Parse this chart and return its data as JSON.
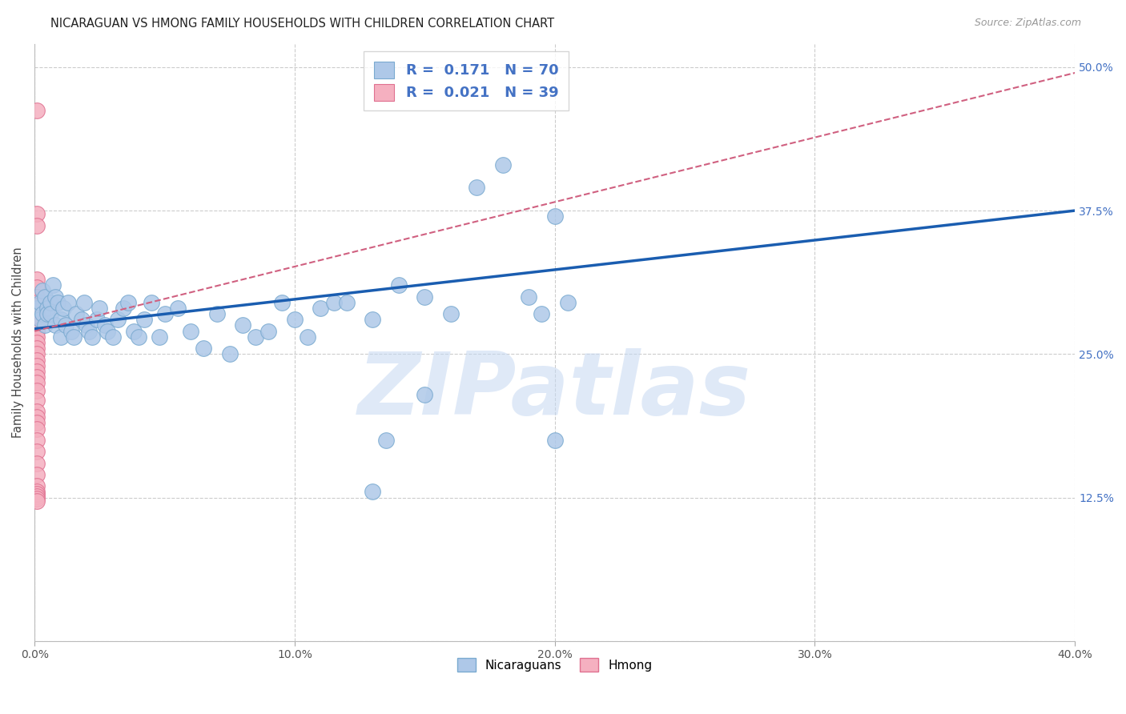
{
  "title": "NICARAGUAN VS HMONG FAMILY HOUSEHOLDS WITH CHILDREN CORRELATION CHART",
  "source": "Source: ZipAtlas.com",
  "ylabel": "Family Households with Children",
  "x_min": 0.0,
  "x_max": 0.4,
  "y_min": 0.0,
  "y_max": 0.52,
  "x_ticks": [
    0.0,
    0.1,
    0.2,
    0.3,
    0.4
  ],
  "x_tick_labels": [
    "0.0%",
    "10.0%",
    "20.0%",
    "30.0%",
    "40.0%"
  ],
  "y_ticks": [
    0.0,
    0.125,
    0.25,
    0.375,
    0.5
  ],
  "y_tick_labels_right": [
    "",
    "12.5%",
    "25.0%",
    "37.5%",
    "50.0%"
  ],
  "blue_face": "#aec8e8",
  "blue_edge": "#7aaad0",
  "pink_face": "#f5b0c0",
  "pink_edge": "#e07090",
  "blue_line": "#1a5db0",
  "pink_line": "#d06080",
  "grid_color": "#cccccc",
  "watermark": "ZIPatlas",
  "watermark_color": "#c5d8f2",
  "legend_R_blue": "0.171",
  "legend_N_blue": "70",
  "legend_R_pink": "0.021",
  "legend_N_pink": "39",
  "title_color": "#222222",
  "source_color": "#999999",
  "axis_label_color": "#444444",
  "tick_color_right": "#4472c4",
  "tick_color_bottom": "#555555",
  "blue_x": [
    0.001,
    0.002,
    0.002,
    0.003,
    0.003,
    0.004,
    0.004,
    0.005,
    0.005,
    0.006,
    0.006,
    0.007,
    0.008,
    0.008,
    0.009,
    0.01,
    0.01,
    0.011,
    0.012,
    0.013,
    0.014,
    0.015,
    0.016,
    0.018,
    0.019,
    0.02,
    0.021,
    0.022,
    0.024,
    0.025,
    0.027,
    0.028,
    0.03,
    0.032,
    0.034,
    0.036,
    0.038,
    0.04,
    0.042,
    0.045,
    0.048,
    0.05,
    0.055,
    0.06,
    0.065,
    0.07,
    0.075,
    0.08,
    0.085,
    0.09,
    0.095,
    0.1,
    0.105,
    0.11,
    0.115,
    0.12,
    0.13,
    0.14,
    0.15,
    0.16,
    0.17,
    0.18,
    0.19,
    0.195,
    0.2,
    0.2,
    0.205,
    0.13,
    0.15,
    0.135
  ],
  "blue_y": [
    0.29,
    0.295,
    0.28,
    0.305,
    0.285,
    0.275,
    0.3,
    0.29,
    0.285,
    0.295,
    0.285,
    0.31,
    0.275,
    0.3,
    0.295,
    0.28,
    0.265,
    0.29,
    0.275,
    0.295,
    0.27,
    0.265,
    0.285,
    0.28,
    0.295,
    0.275,
    0.27,
    0.265,
    0.28,
    0.29,
    0.275,
    0.27,
    0.265,
    0.28,
    0.29,
    0.295,
    0.27,
    0.265,
    0.28,
    0.295,
    0.265,
    0.285,
    0.29,
    0.27,
    0.255,
    0.285,
    0.25,
    0.275,
    0.265,
    0.27,
    0.295,
    0.28,
    0.265,
    0.29,
    0.295,
    0.295,
    0.28,
    0.31,
    0.3,
    0.285,
    0.395,
    0.415,
    0.3,
    0.285,
    0.37,
    0.175,
    0.295,
    0.13,
    0.215,
    0.175
  ],
  "pink_x": [
    0.001,
    0.001,
    0.001,
    0.001,
    0.001,
    0.001,
    0.001,
    0.001,
    0.001,
    0.001,
    0.001,
    0.001,
    0.001,
    0.001,
    0.001,
    0.001,
    0.001,
    0.001,
    0.001,
    0.001,
    0.001,
    0.001,
    0.001,
    0.001,
    0.001,
    0.001,
    0.001,
    0.001,
    0.001,
    0.001,
    0.001,
    0.001,
    0.001,
    0.001,
    0.001,
    0.001,
    0.001,
    0.001,
    0.001
  ],
  "pink_y": [
    0.462,
    0.372,
    0.362,
    0.315,
    0.308,
    0.3,
    0.295,
    0.292,
    0.288,
    0.285,
    0.28,
    0.278,
    0.275,
    0.27,
    0.265,
    0.26,
    0.255,
    0.25,
    0.245,
    0.24,
    0.235,
    0.23,
    0.225,
    0.218,
    0.21,
    0.2,
    0.195,
    0.19,
    0.185,
    0.175,
    0.165,
    0.155,
    0.145,
    0.135,
    0.13,
    0.128,
    0.126,
    0.124,
    0.122
  ],
  "blue_line_x0": 0.0,
  "blue_line_x1": 0.4,
  "blue_line_y0": 0.272,
  "blue_line_y1": 0.375,
  "pink_line_x0": 0.0,
  "pink_line_x1": 0.4,
  "pink_line_y0": 0.27,
  "pink_line_y1": 0.495
}
